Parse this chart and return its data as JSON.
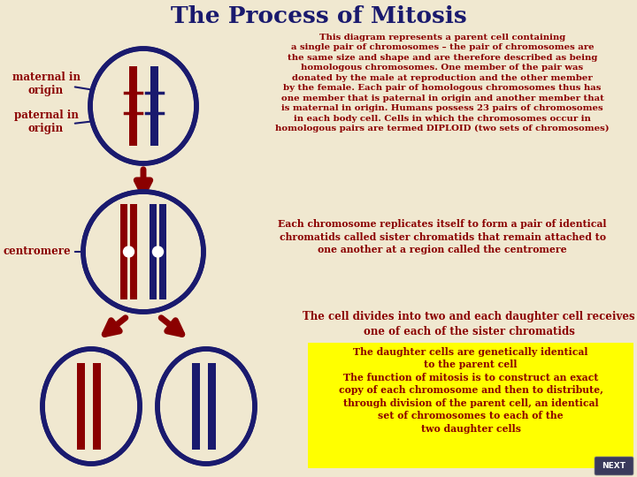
{
  "title": "The Process of Mitosis",
  "bg_color": "#f0e8d0",
  "title_color": "#1a1a6e",
  "dark_red": "#8b0000",
  "navy": "#1a1a6e",
  "yellow_box_bg": "#ffff00",
  "next_btn_color": "#3a3a5c",
  "labels": {
    "maternal": "maternal in\norigin",
    "paternal": "paternal in\norigin",
    "centromere": "centromere"
  },
  "text_block1": "This diagram represents a parent cell containing\na single pair of chromosomes – the pair of chromosomes are\nthe same size and shape and are therefore described as being\nhomologous chromosomes. One member of the pair was\ndonated by the male at reproduction and the other member\nby the female. Each pair of homologous chromosomes thus has\none member that is paternal in origin and another member that\nis maternal in origin. Humans possess 23 pairs of chromosomes\nin each body cell. Cells in which the chromosomes occur in\nhomologous pairs are termed DIPLOID (two sets of chromosomes)",
  "text_block2": "Each chromosome replicates itself to form a pair of identical\nchromatids called sister chromatids that remain attached to\none another at a region called the centromere",
  "text_block3": "The cell divides into two and each daughter cell receives\none of each of the sister chromatids",
  "text_block4": "The daughter cells are genetically identical\nto the parent cell\nThe function of mitosis is to construct an exact\ncopy of each chromosome and then to distribute,\nthrough division of the parent cell, an identical\nset of chromosomes to each of the\ntwo daughter cells"
}
